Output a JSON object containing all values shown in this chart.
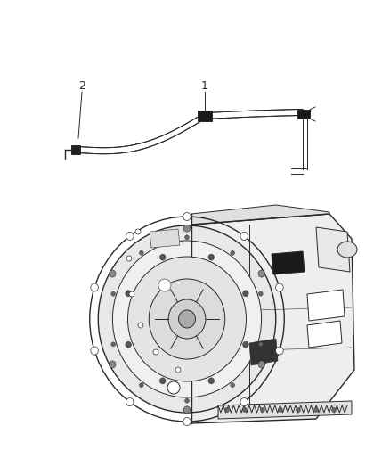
{
  "bg_color": "#ffffff",
  "line_color": "#2a2a2a",
  "label_color": "#333333",
  "figsize": [
    4.38,
    5.33
  ],
  "dpi": 100,
  "label1_text": "1",
  "label2_text": "2",
  "img_extent": [
    0,
    438,
    0,
    533
  ]
}
